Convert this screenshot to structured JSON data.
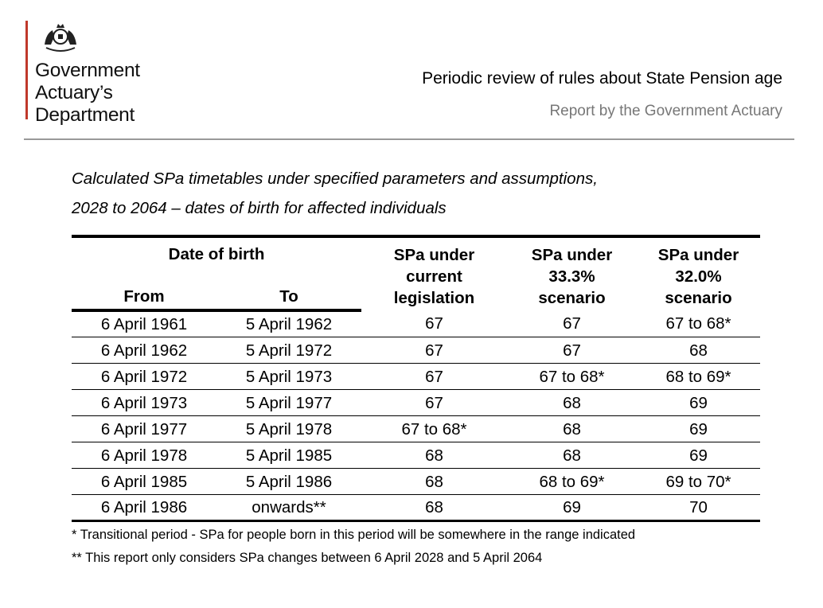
{
  "logo": {
    "lines": [
      "Government",
      "Actuary’s",
      "Department"
    ]
  },
  "header": {
    "title": "Periodic review of rules about State Pension age",
    "subtitle": "Report by the Government Actuary"
  },
  "caption": {
    "line1": "Calculated SPa timetables under specified parameters and assumptions,",
    "line2": "2028 to 2064 – dates of birth for affected individuals"
  },
  "table": {
    "group_header": "Date of birth",
    "columns": [
      "From",
      "To",
      "SPa under current legislation",
      "SPa under 33.3% scenario",
      "SPa under 32.0% scenario"
    ],
    "rows": [
      [
        "6 April 1961",
        "5 April 1962",
        "67",
        "67",
        "67 to 68*"
      ],
      [
        "6 April 1962",
        "5 April 1972",
        "67",
        "67",
        "68"
      ],
      [
        "6 April 1972",
        "5 April 1973",
        "67",
        "67 to 68*",
        "68 to 69*"
      ],
      [
        "6 April 1973",
        "5 April 1977",
        "67",
        "68",
        "69"
      ],
      [
        "6 April 1977",
        "5 April 1978",
        "67 to 68*",
        "68",
        "69"
      ],
      [
        "6 April 1978",
        "5 April 1985",
        "68",
        "68",
        "69"
      ],
      [
        "6 April 1985",
        "5 April 1986",
        "68",
        "68 to 69*",
        "69 to 70*"
      ],
      [
        "6 April 1986",
        "onwards**",
        "68",
        "69",
        "70"
      ]
    ]
  },
  "notes": [
    "* Transitional period - SPa for people born in this period will be somewhere in the range indicated",
    "** This report only considers SPa changes between 6 April 2028 and 5 April 2064"
  ]
}
